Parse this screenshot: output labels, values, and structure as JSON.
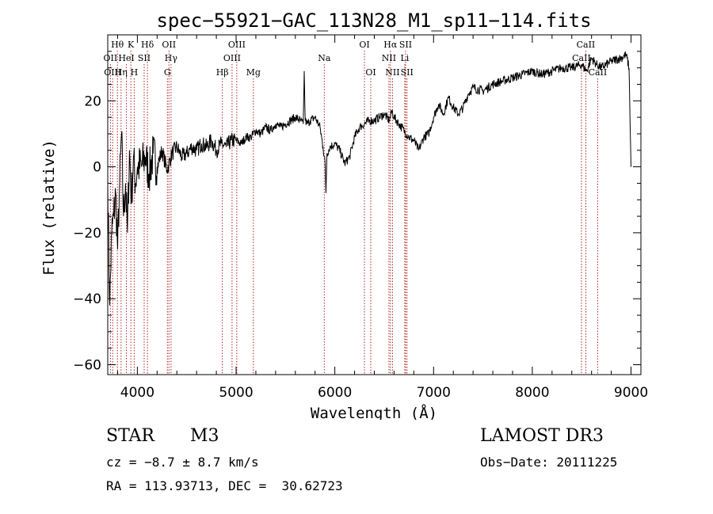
{
  "chart_data": {
    "type": "line",
    "title": "spec−55921−GAC_113N28_M1_sp11−114.fits",
    "xlabel": "Wavelength (Å)",
    "ylabel": "Flux (relative)",
    "xlim": [
      3700,
      9100
    ],
    "ylim": [
      -63,
      40
    ],
    "xticks": [
      {
        "value": 4000,
        "label": "4000"
      },
      {
        "value": 5000,
        "label": "5000"
      },
      {
        "value": 6000,
        "label": "6000"
      },
      {
        "value": 7000,
        "label": "7000"
      },
      {
        "value": 8000,
        "label": "8000"
      },
      {
        "value": 9000,
        "label": "9000"
      }
    ],
    "yticks": [
      {
        "value": -60,
        "label": "−60"
      },
      {
        "value": -40,
        "label": "−40"
      },
      {
        "value": -20,
        "label": "−20"
      },
      {
        "value": 0,
        "label": "0"
      },
      {
        "value": 20,
        "label": "20"
      }
    ],
    "series": [
      {
        "name": "flux",
        "x": [
          3700,
          3720,
          3740,
          3760,
          3780,
          3800,
          3820,
          3840,
          3860,
          3880,
          3900,
          3920,
          3940,
          3960,
          3980,
          4000,
          4040,
          4080,
          4120,
          4160,
          4200,
          4250,
          4300,
          4350,
          4400,
          4450,
          4500,
          4550,
          4600,
          4650,
          4700,
          4750,
          4800,
          4850,
          4900,
          4950,
          5000,
          5050,
          5100,
          5150,
          5200,
          5250,
          5300,
          5350,
          5400,
          5450,
          5500,
          5550,
          5600,
          5650,
          5680,
          5690,
          5700,
          5720,
          5750,
          5800,
          5850,
          5880,
          5900,
          5910,
          5920,
          5950,
          6000,
          6050,
          6100,
          6150,
          6200,
          6250,
          6300,
          6350,
          6400,
          6450,
          6500,
          6550,
          6580,
          6600,
          6650,
          6700,
          6750,
          6800,
          6850,
          6900,
          6950,
          7000,
          7050,
          7100,
          7150,
          7200,
          7250,
          7300,
          7350,
          7400,
          7500,
          7600,
          7700,
          7800,
          7900,
          8000,
          8100,
          8200,
          8300,
          8400,
          8500,
          8550,
          8600,
          8650,
          8700,
          8800,
          8900,
          8950,
          8980,
          9000
        ],
        "y": [
          -5,
          -42,
          -20,
          -15,
          -8,
          -25,
          -5,
          10,
          -15,
          -5,
          -20,
          5,
          -10,
          3,
          -5,
          0,
          0,
          3,
          -2,
          4,
          0,
          5,
          -1,
          4,
          6,
          3,
          4,
          6,
          5,
          7,
          6,
          8,
          5,
          7,
          6,
          8,
          8,
          7,
          9,
          9,
          11,
          10,
          12,
          11,
          13,
          12,
          13,
          14,
          15,
          14,
          13,
          29,
          14,
          13,
          14,
          15,
          12,
          6,
          2,
          -8,
          4,
          6,
          7,
          5,
          1,
          3,
          9,
          12,
          13,
          14,
          14,
          15,
          16,
          14,
          17,
          15,
          13,
          11,
          9,
          8,
          5,
          9,
          10,
          15,
          19,
          16,
          21,
          18,
          16,
          18,
          22,
          24,
          23,
          25,
          26,
          27,
          28,
          29,
          28,
          29,
          30,
          30,
          31,
          29,
          33,
          31,
          30,
          32,
          33,
          34,
          30,
          0
        ]
      }
    ],
    "lines": [
      {
        "label": "Hθ",
        "x": 3798,
        "row": 0
      },
      {
        "label": "K",
        "x": 3934,
        "row": 0
      },
      {
        "label": "Hδ",
        "x": 4102,
        "row": 0
      },
      {
        "label": "OII",
        "x": 4320,
        "row": 0
      },
      {
        "label": "OIII",
        "x": 5007,
        "row": 0
      },
      {
        "label": "OI",
        "x": 6300,
        "row": 0
      },
      {
        "label": "Hα",
        "x": 6563,
        "row": 0
      },
      {
        "label": "SII",
        "x": 6717,
        "row": 0
      },
      {
        "label": "CaII",
        "x": 8542,
        "row": 0
      },
      {
        "label": "OII",
        "x": 3727,
        "row": 1
      },
      {
        "label": "HeI",
        "x": 3889,
        "row": 1
      },
      {
        "label": "SII",
        "x": 4069,
        "row": 1
      },
      {
        "label": "Hγ",
        "x": 4341,
        "row": 1
      },
      {
        "label": "OIII",
        "x": 4959,
        "row": 1
      },
      {
        "label": "Na",
        "x": 5893,
        "row": 1
      },
      {
        "label": "NII",
        "x": 6548,
        "row": 1
      },
      {
        "label": "Li",
        "x": 6708,
        "row": 1
      },
      {
        "label": "CaII",
        "x": 8498,
        "row": 1
      },
      {
        "label": "OIII",
        "x": 3750,
        "row": 2
      },
      {
        "label": "Hη",
        "x": 3835,
        "row": 2
      },
      {
        "label": "H",
        "x": 3968,
        "row": 2
      },
      {
        "label": "G",
        "x": 4304,
        "row": 2
      },
      {
        "label": "Hβ",
        "x": 4861,
        "row": 2
      },
      {
        "label": "Mg",
        "x": 5175,
        "row": 2
      },
      {
        "label": "OI",
        "x": 6364,
        "row": 2
      },
      {
        "label": "NII",
        "x": 6584,
        "row": 2
      },
      {
        "label": "SII",
        "x": 6731,
        "row": 2
      },
      {
        "label": "CaII",
        "x": 8662,
        "row": 2
      }
    ],
    "colors": {
      "spectrum": "#000000",
      "line_marker": "#b22222",
      "axis": "#000000"
    }
  },
  "info": {
    "object_class": "STAR",
    "subclass": "M3",
    "survey": "LAMOST DR3",
    "cz": "cz = −8.7 ± 8.7 km/s",
    "obs_date": "Obs−Date: 20111225",
    "coords": "RA = 113.93713, DEC =  30.62723"
  }
}
